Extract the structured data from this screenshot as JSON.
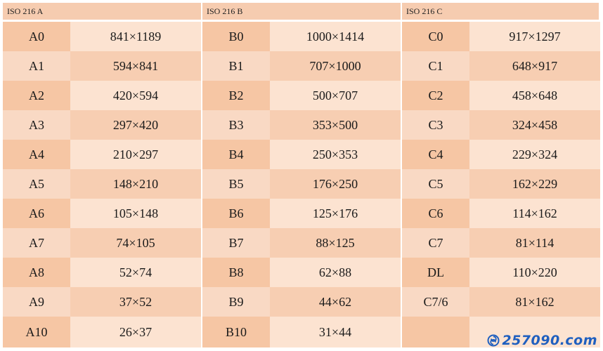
{
  "table": {
    "groups": [
      "ISO 216 A",
      "ISO 216 B",
      "ISO 216 C"
    ],
    "rows": [
      [
        [
          "A0",
          "841×1189"
        ],
        [
          "B0",
          "1000×1414"
        ],
        [
          "C0",
          "917×1297"
        ]
      ],
      [
        [
          "A1",
          "594×841"
        ],
        [
          "B1",
          "707×1000"
        ],
        [
          "C1",
          "648×917"
        ]
      ],
      [
        [
          "A2",
          "420×594"
        ],
        [
          "B2",
          "500×707"
        ],
        [
          "C2",
          "458×648"
        ]
      ],
      [
        [
          "A3",
          "297×420"
        ],
        [
          "B3",
          "353×500"
        ],
        [
          "C3",
          "324×458"
        ]
      ],
      [
        [
          "A4",
          "210×297"
        ],
        [
          "B4",
          "250×353"
        ],
        [
          "C4",
          "229×324"
        ]
      ],
      [
        [
          "A5",
          "148×210"
        ],
        [
          "B5",
          "176×250"
        ],
        [
          "C5",
          "162×229"
        ]
      ],
      [
        [
          "A6",
          "105×148"
        ],
        [
          "B6",
          "125×176"
        ],
        [
          "C6",
          "114×162"
        ]
      ],
      [
        [
          "A7",
          "74×105"
        ],
        [
          "B7",
          "88×125"
        ],
        [
          "C7",
          "81×114"
        ]
      ],
      [
        [
          "A8",
          "52×74"
        ],
        [
          "B8",
          "62×88"
        ],
        [
          "DL",
          "110×220"
        ]
      ],
      [
        [
          "A9",
          "37×52"
        ],
        [
          "B9",
          "44×62"
        ],
        [
          "C7/6",
          "81×162"
        ]
      ],
      [
        [
          "A10",
          "26×37"
        ],
        [
          "B10",
          "31×44"
        ],
        [
          "",
          ""
        ]
      ]
    ]
  },
  "watermark": {
    "text": "257090.com",
    "icon": "swirl-logo-icon",
    "color": "#1f5fbf"
  }
}
